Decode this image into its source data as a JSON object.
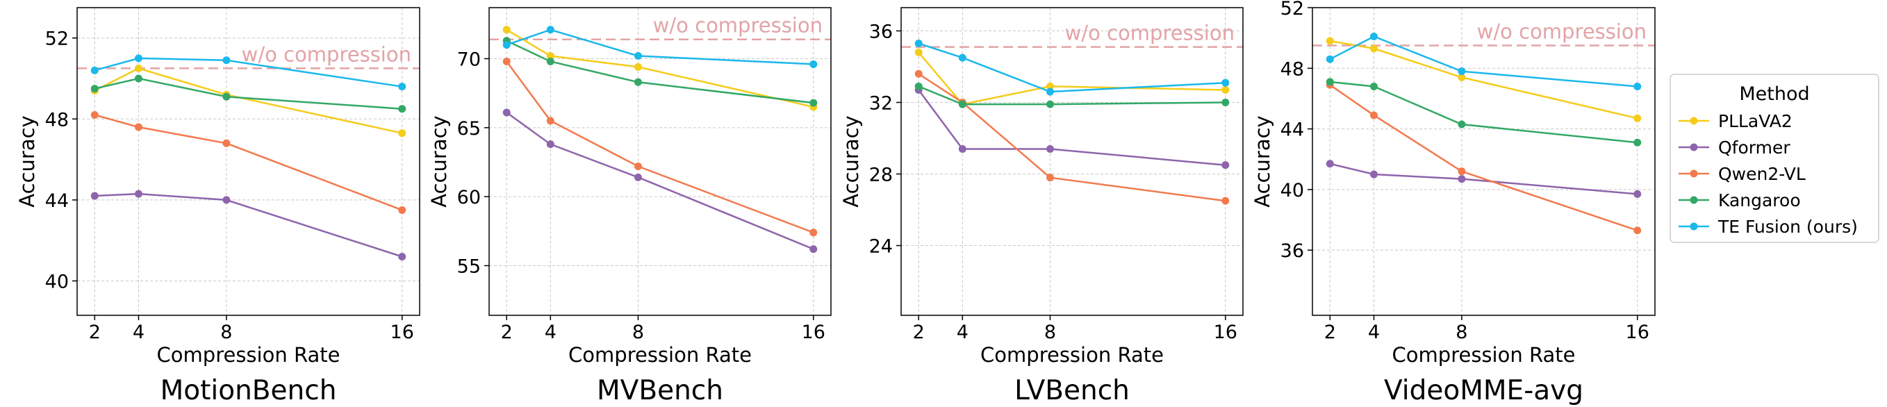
{
  "chart_data": [
    {
      "type": "line",
      "title": "MotionBench",
      "xlabel": "Compression Rate",
      "ylabel": "Accuracy",
      "x": [
        2,
        4,
        8,
        16
      ],
      "xticks": [
        "2",
        "4",
        "8",
        "16"
      ],
      "yticks": [
        40,
        44,
        48,
        52
      ],
      "xlim": [
        1.2,
        16.8
      ],
      "ylim": [
        38.3,
        53.5
      ],
      "grid": true,
      "baseline": {
        "label": "w/o compression",
        "value": 50.5
      },
      "series": [
        {
          "name": "PLLaVA2",
          "values": [
            49.4,
            50.5,
            49.2,
            47.3
          ]
        },
        {
          "name": "Qformer",
          "values": [
            44.2,
            44.3,
            44.0,
            41.2
          ]
        },
        {
          "name": "Qwen2-VL",
          "values": [
            48.2,
            47.6,
            46.8,
            43.5
          ]
        },
        {
          "name": "Kangaroo",
          "values": [
            49.5,
            50.0,
            49.1,
            48.5
          ]
        },
        {
          "name": "TE Fusion (ours)",
          "values": [
            50.4,
            51.0,
            50.9,
            49.6
          ]
        }
      ]
    },
    {
      "type": "line",
      "title": "MVBench",
      "xlabel": "Compression Rate",
      "ylabel": "Accuracy",
      "x": [
        2,
        4,
        8,
        16
      ],
      "xticks": [
        "2",
        "4",
        "8",
        "16"
      ],
      "yticks": [
        55,
        60,
        65,
        70
      ],
      "xlim": [
        1.2,
        16.8
      ],
      "ylim": [
        51.4,
        73.7
      ],
      "grid": true,
      "baseline": {
        "label": "w/o compression",
        "value": 71.4
      },
      "series": [
        {
          "name": "PLLaVA2",
          "values": [
            72.1,
            70.2,
            69.4,
            66.5
          ]
        },
        {
          "name": "Qformer",
          "values": [
            66.1,
            63.8,
            61.4,
            56.2
          ]
        },
        {
          "name": "Qwen2-VL",
          "values": [
            69.8,
            65.5,
            62.2,
            57.4
          ]
        },
        {
          "name": "Kangaroo",
          "values": [
            71.3,
            69.8,
            68.3,
            66.8
          ]
        },
        {
          "name": "TE Fusion (ours)",
          "values": [
            71.0,
            72.1,
            70.2,
            69.6
          ]
        }
      ]
    },
    {
      "type": "line",
      "title": "LVBench",
      "xlabel": "Compression Rate",
      "ylabel": "Accuracy",
      "x": [
        2,
        4,
        8,
        16
      ],
      "xticks": [
        "2",
        "4",
        "8",
        "16"
      ],
      "yticks": [
        24,
        28,
        32,
        36
      ],
      "xlim": [
        1.2,
        16.8
      ],
      "ylim": [
        20.1,
        37.3
      ],
      "grid": true,
      "baseline": {
        "label": "w/o compression",
        "value": 35.1
      },
      "series": [
        {
          "name": "PLLaVA2",
          "values": [
            34.8,
            31.9,
            32.9,
            32.7
          ]
        },
        {
          "name": "Qformer",
          "values": [
            32.7,
            29.4,
            29.4,
            28.5
          ]
        },
        {
          "name": "Qwen2-VL",
          "values": [
            33.6,
            32.0,
            27.8,
            26.5
          ]
        },
        {
          "name": "Kangaroo",
          "values": [
            32.9,
            31.9,
            31.9,
            32.0
          ]
        },
        {
          "name": "TE Fusion (ours)",
          "values": [
            35.3,
            34.5,
            32.6,
            33.1
          ]
        }
      ]
    },
    {
      "type": "line",
      "title": "VideoMME-avg",
      "xlabel": "Compression Rate",
      "ylabel": "Accuracy",
      "x": [
        2,
        4,
        8,
        16
      ],
      "xticks": [
        "2",
        "4",
        "8",
        "16"
      ],
      "yticks": [
        36,
        40,
        44,
        48,
        52
      ],
      "xlim": [
        1.2,
        16.8
      ],
      "ylim": [
        31.7,
        52.0
      ],
      "grid": true,
      "baseline": {
        "label": "w/o compression",
        "value": 49.5
      },
      "series": [
        {
          "name": "PLLaVA2",
          "values": [
            49.8,
            49.3,
            47.4,
            44.7
          ]
        },
        {
          "name": "Qformer",
          "values": [
            41.7,
            41.0,
            40.7,
            39.7
          ]
        },
        {
          "name": "Qwen2-VL",
          "values": [
            46.9,
            44.9,
            41.2,
            37.3
          ]
        },
        {
          "name": "Kangaroo",
          "values": [
            47.1,
            46.8,
            44.3,
            43.1
          ]
        },
        {
          "name": "TE Fusion (ours)",
          "values": [
            48.6,
            50.1,
            47.8,
            46.8
          ]
        }
      ]
    }
  ],
  "legend": {
    "title": "Method",
    "position": "right",
    "entries": [
      "PLLaVA2",
      "Qformer",
      "Qwen2-VL",
      "Kangaroo",
      "TE Fusion (ours)"
    ]
  },
  "colors": {
    "PLLaVA2": "#f5cc1a",
    "Qformer": "#8e64ab",
    "Qwen2-VL": "#f27a4d",
    "Kangaroo": "#33a866",
    "TE Fusion (ours)": "#1ab8eb",
    "baseline": "#e3a3a6",
    "grid": "#c8c8c8"
  }
}
